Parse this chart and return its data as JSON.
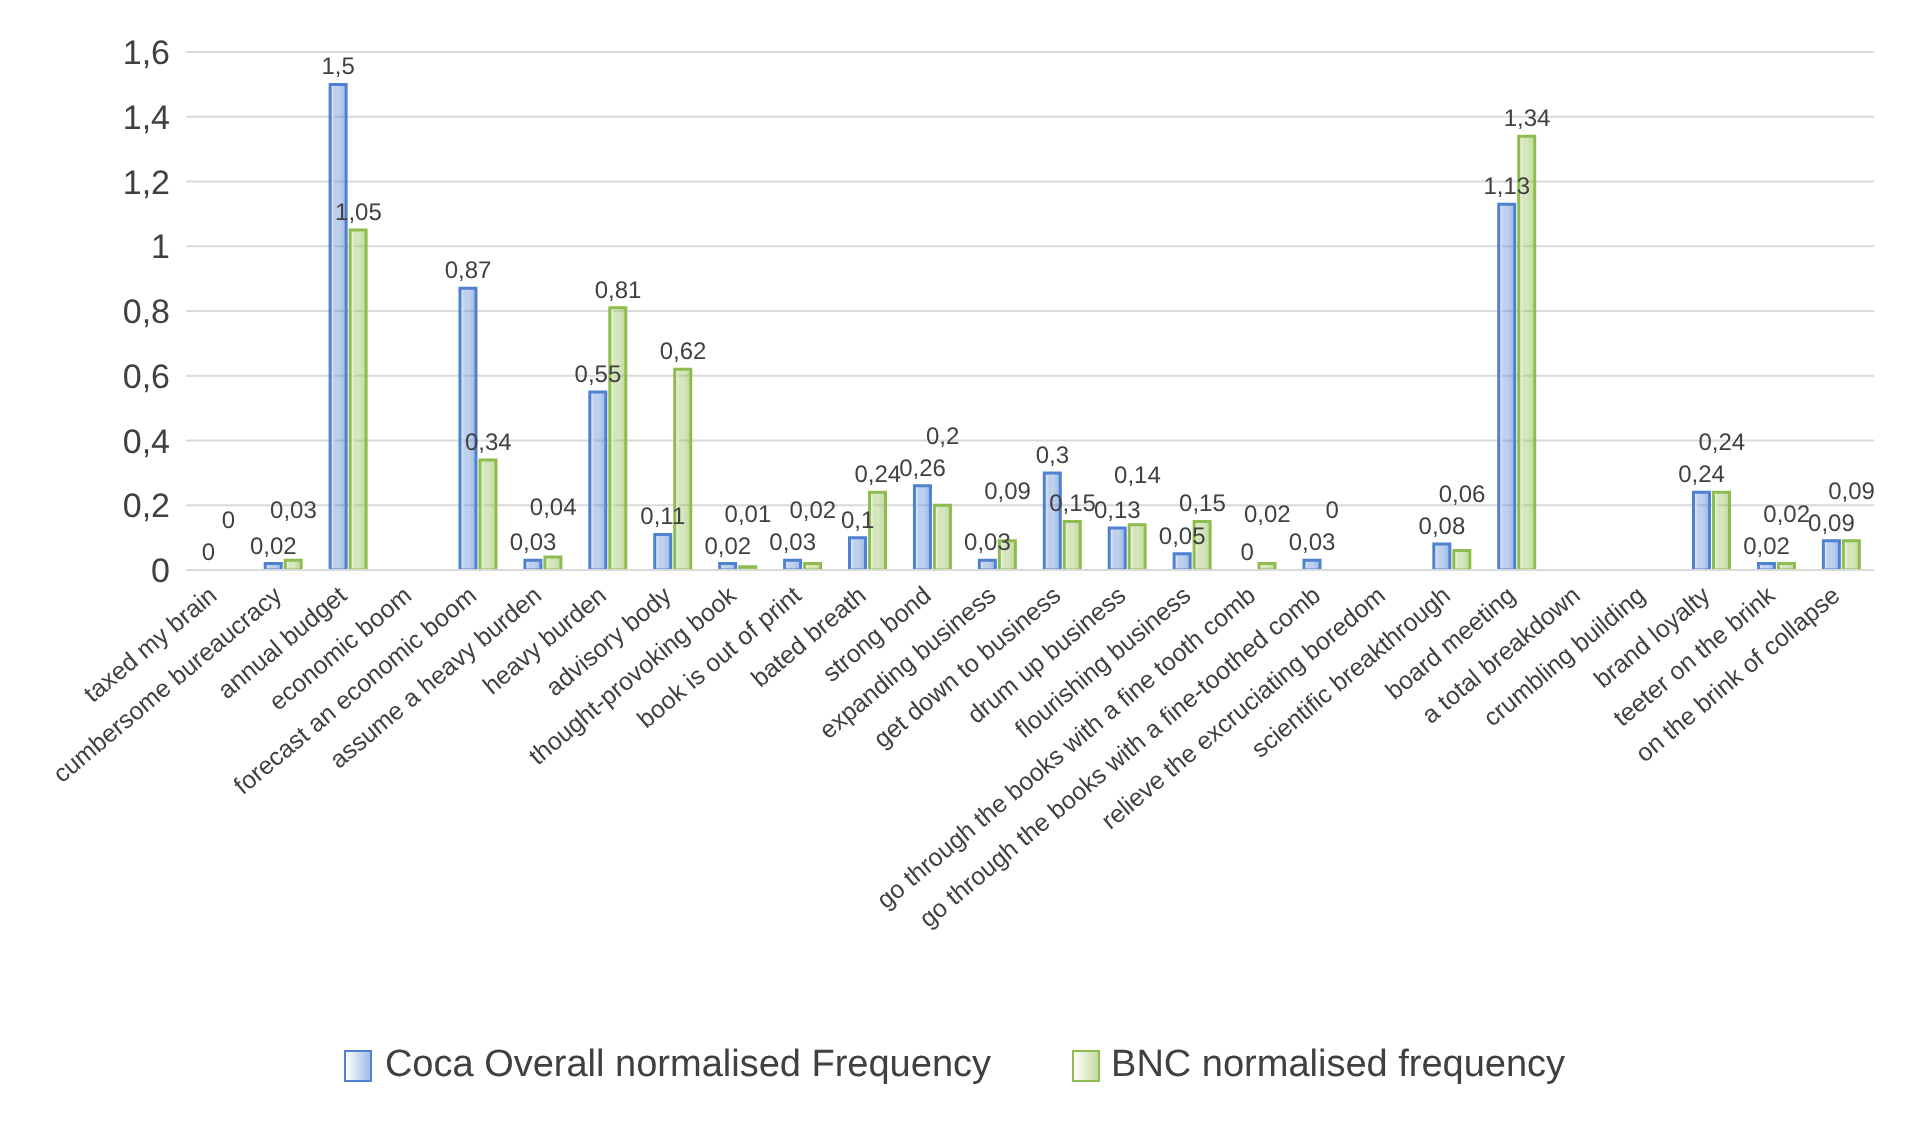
{
  "chart_data": {
    "type": "bar",
    "categories": [
      "taxed my brain",
      "cumbersome bureaucracy",
      "annual budget",
      "economic boom",
      "forecast an economic boom",
      "assume a heavy burden",
      "heavy burden",
      "advisory body",
      "thought-provoking book",
      "book is out of print",
      "bated breath",
      "strong bond",
      "expanding business",
      "get down to business",
      "drum up business",
      "flourishing business",
      "go through the books with a fine tooth comb",
      "go through the books with a fine-toothed comb",
      "relieve the excruciating boredom",
      "scientific breakthrough",
      "board meeting",
      "a total breakdown",
      "crumbling building",
      "brand loyalty",
      "teeter on the brink",
      "on the brink of collapse"
    ],
    "series": [
      {
        "name": "Coca Overall normalised Frequency",
        "color": "#4f81d0",
        "values": [
          0,
          0.02,
          1.5,
          null,
          0.87,
          0.03,
          0.55,
          0.11,
          0.02,
          0.03,
          0.1,
          0.26,
          0.03,
          0.3,
          0.13,
          0.05,
          0,
          0.03,
          null,
          0.08,
          1.13,
          null,
          null,
          0.24,
          0.02,
          0.09
        ],
        "value_labels": [
          "0",
          "0,02",
          "1,5",
          null,
          "0,87",
          "0,03",
          "0,55",
          "0,11",
          "0,02",
          "0,03",
          "0,1",
          "0,26",
          "0,03",
          "0,3",
          "0,13",
          "0,05",
          "0",
          "0,03",
          null,
          "0,08",
          "1,13",
          null,
          null,
          "0,24",
          "0,02",
          "0,09"
        ]
      },
      {
        "name": "BNC normalised frequency",
        "color": "#8fbc4f",
        "values": [
          0,
          0.03,
          1.05,
          null,
          0.34,
          0.04,
          0.81,
          0.62,
          0.01,
          0.02,
          0.24,
          0.2,
          0.09,
          0.15,
          0.14,
          0.15,
          0.02,
          0,
          null,
          0.06,
          1.34,
          null,
          null,
          0.24,
          0.02,
          0.09
        ],
        "value_labels": [
          "0",
          "0,03",
          "1,05",
          null,
          "0,34",
          "0,04",
          "0,81",
          "0,62",
          "0,01",
          "0,02",
          "0,24",
          "0,2",
          "0,09",
          "0,15",
          "0,14",
          "0,15",
          "0,02",
          "0",
          null,
          "0,06",
          "1,34",
          null,
          null,
          "0,24",
          "0,02",
          "0,09"
        ]
      }
    ],
    "ylim": [
      0,
      1.6
    ],
    "yticks": [
      {
        "value": 0,
        "label": "0"
      },
      {
        "value": 0.2,
        "label": "0,2"
      },
      {
        "value": 0.4,
        "label": "0,4"
      },
      {
        "value": 0.6,
        "label": "0,6"
      },
      {
        "value": 0.8,
        "label": "0,8"
      },
      {
        "value": 1,
        "label": "1"
      },
      {
        "value": 1.2,
        "label": "1,2"
      },
      {
        "value": 1.4,
        "label": "1,4"
      },
      {
        "value": 1.6,
        "label": "1,6"
      }
    ],
    "grid": "y",
    "legend": "bottom"
  }
}
